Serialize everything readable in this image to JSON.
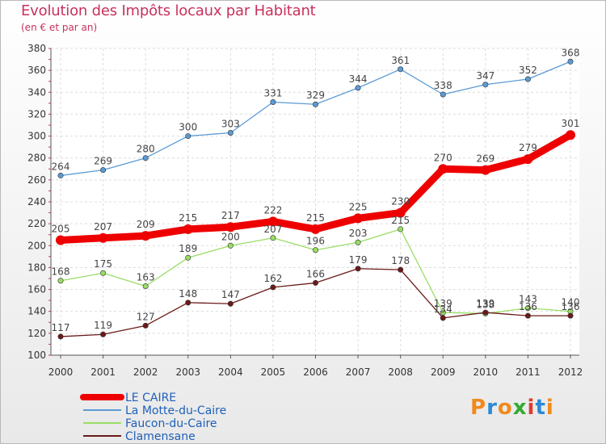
{
  "header": {
    "title": "Evolution des Impôts locaux par Habitant",
    "subtitle": "(en € et par an)"
  },
  "logo": {
    "text": "Proxiti",
    "colors": [
      "#f08a1c",
      "#2b8ad6",
      "#f08a1c",
      "#33aa33",
      "#e23b2e",
      "#2b8ad6",
      "#f08a1c"
    ]
  },
  "chart_data": {
    "type": "line",
    "title": "Evolution des Impôts locaux par Habitant",
    "subtitle": "(en € et par an)",
    "x": [
      "2000",
      "2001",
      "2002",
      "2003",
      "2004",
      "2005",
      "2006",
      "2007",
      "2008",
      "2009",
      "2010",
      "2011",
      "2012"
    ],
    "ylim": [
      100,
      380
    ],
    "yticks": [
      100,
      120,
      140,
      160,
      180,
      200,
      220,
      240,
      260,
      280,
      300,
      320,
      340,
      360,
      380
    ],
    "grid": true,
    "legend": "bottom-left",
    "series": [
      {
        "name": "LE CAIRE",
        "color": "#ee0000",
        "width": 9,
        "marker": 6,
        "values": [
          205,
          207,
          209,
          215,
          217,
          222,
          215,
          225,
          230,
          270,
          269,
          279,
          301
        ],
        "labels": [
          "205",
          "207",
          "209",
          "215",
          "217",
          "222",
          "215",
          "225",
          "230",
          "270",
          "269",
          "279",
          "301"
        ]
      },
      {
        "name": "La Motte-du-Caire",
        "color": "#5b9bd5",
        "width": 1.3,
        "marker": 3.2,
        "values": [
          264,
          269,
          280,
          300,
          303,
          331,
          329,
          344,
          361,
          338,
          347,
          352,
          368
        ],
        "labels": [
          "264",
          "269",
          "280",
          "300",
          "303",
          "331",
          "329",
          "344",
          "361",
          "338",
          "347",
          "352",
          "368"
        ]
      },
      {
        "name": "Faucon-du-Caire",
        "color": "#99dd66",
        "width": 1.3,
        "marker": 3.2,
        "values": [
          168,
          175,
          163,
          189,
          200,
          207,
          196,
          203,
          215,
          139,
          138,
          143,
          140
        ],
        "labels": [
          "168",
          "175",
          "163",
          "189",
          "200",
          "207",
          "196",
          "203",
          "215",
          "139",
          "138",
          "143",
          "140"
        ]
      },
      {
        "name": "Clamensane",
        "color": "#6b1a1a",
        "width": 1.3,
        "marker": 3.2,
        "values": [
          117,
          119,
          127,
          148,
          147,
          162,
          166,
          179,
          178,
          134,
          139,
          136,
          136
        ],
        "labels": [
          "117",
          "119",
          "127",
          "148",
          "147",
          "162",
          "166",
          "179",
          "178",
          "134",
          "139",
          "136",
          "136"
        ]
      }
    ]
  }
}
